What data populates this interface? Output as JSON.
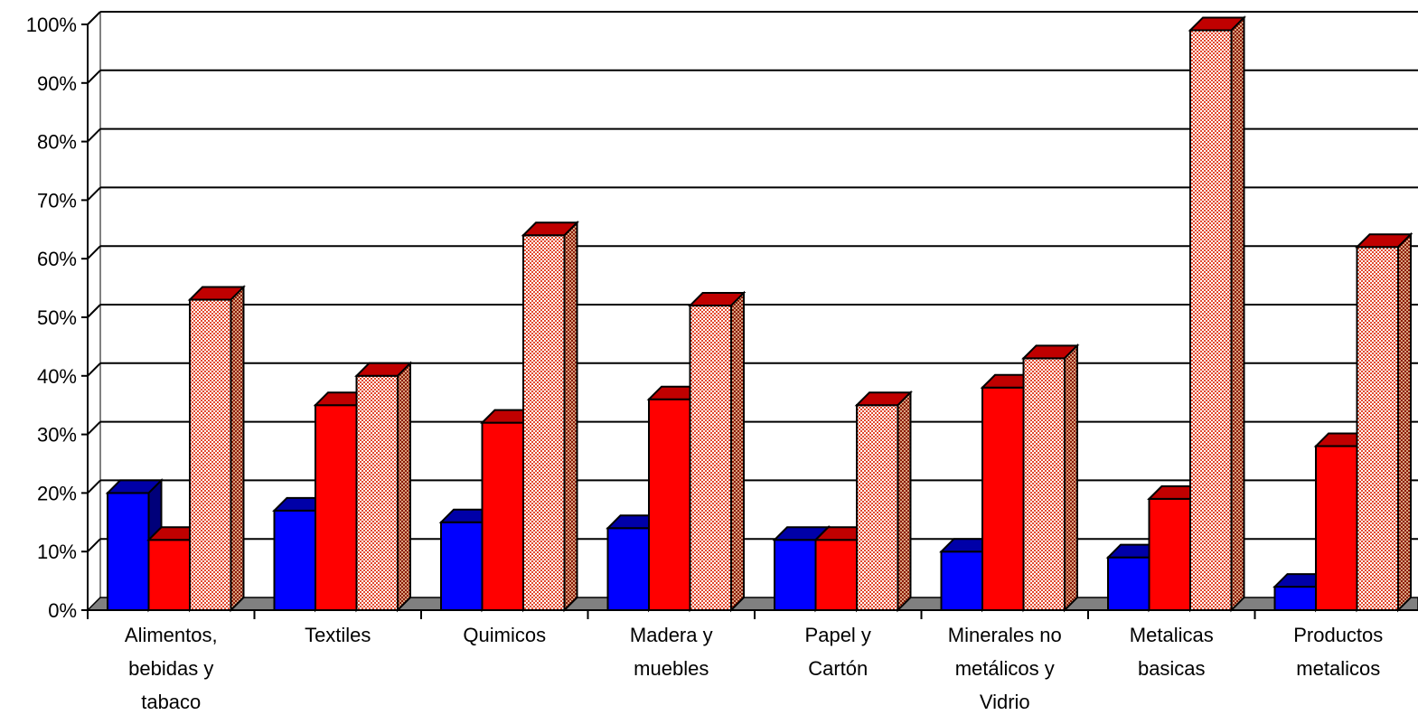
{
  "chart_data": {
    "type": "bar",
    "categories": [
      [
        "Alimentos,",
        "bebidas y",
        "tabaco"
      ],
      [
        "Textiles"
      ],
      [
        "Quimicos"
      ],
      [
        "Madera y",
        "muebles"
      ],
      [
        "Papel y",
        "Cartón"
      ],
      [
        "Minerales no",
        "metálicos y",
        "Vidrio"
      ],
      [
        "Metalicas",
        "basicas"
      ],
      [
        "Productos",
        "metalicos"
      ]
    ],
    "series": [
      {
        "values": [
          20,
          17,
          15,
          14,
          12,
          10,
          9,
          4
        ]
      },
      {
        "values": [
          12,
          35,
          32,
          36,
          12,
          38,
          19,
          28
        ]
      },
      {
        "values": [
          53,
          40,
          64,
          52,
          35,
          43,
          99,
          62
        ]
      }
    ],
    "y_ticks": [
      "0%",
      "10%",
      "20%",
      "30%",
      "40%",
      "50%",
      "60%",
      "70%",
      "80%",
      "90%",
      "100%"
    ],
    "ylim": [
      0,
      100
    ],
    "grid": true,
    "legend": "none",
    "style": "3d-clustered-columns"
  },
  "colors": {
    "series_front": [
      "#0000ff",
      "#ff0000",
      "#f4a090"
    ],
    "series_top": [
      "#0000a8",
      "#c00000",
      "#c00000"
    ],
    "series_side": [
      "#00007a",
      "#8b0000",
      "#a0522d"
    ],
    "floor": "#808080",
    "grid": "#000000"
  }
}
